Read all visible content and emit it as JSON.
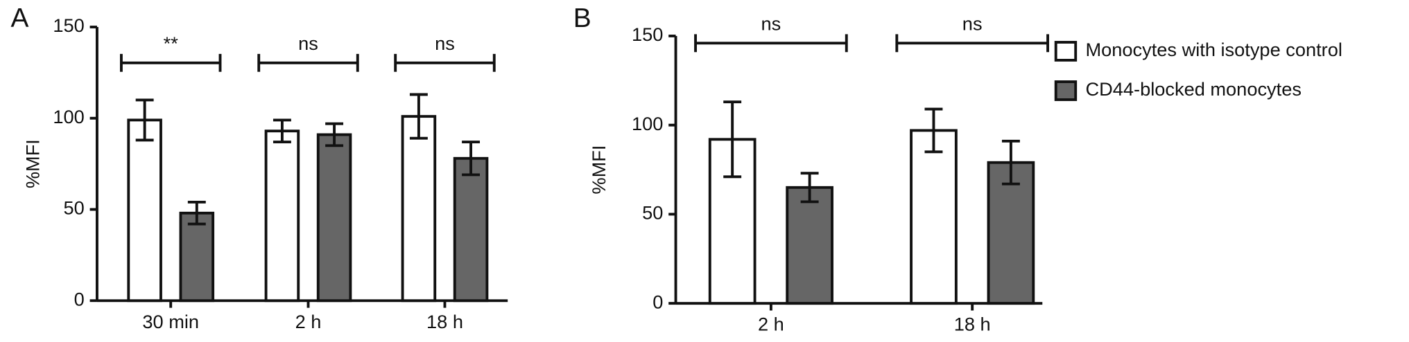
{
  "chart_data": [
    {
      "type": "bar",
      "panel": "A",
      "ylabel": "%MFI",
      "categories": [
        "30 min",
        "2 h",
        "18 h"
      ],
      "series": [
        {
          "color": "#ffffff",
          "values": [
            99,
            93,
            101
          ],
          "errors": [
            11,
            6,
            12
          ]
        },
        {
          "color": "#666666",
          "values": [
            48,
            91,
            78
          ],
          "errors": [
            6,
            6,
            9
          ]
        }
      ],
      "brackets": [
        "**",
        "ns",
        "ns"
      ],
      "ylim": [
        0,
        150
      ],
      "yticks": [
        0,
        50,
        100,
        150
      ],
      "legend": false
    },
    {
      "type": "bar",
      "panel": "B",
      "ylabel": "%MFI",
      "categories": [
        "2 h",
        "18 h"
      ],
      "series": [
        {
          "name": "Monocytes with isotype control",
          "color": "#ffffff",
          "values": [
            92,
            97
          ],
          "errors": [
            21,
            12
          ]
        },
        {
          "name": "CD44-blocked monocytes",
          "color": "#666666",
          "values": [
            65,
            79
          ],
          "errors": [
            8,
            12
          ]
        }
      ],
      "brackets": [
        "ns",
        "ns"
      ],
      "ylim": [
        0,
        150
      ],
      "yticks": [
        0,
        50,
        100,
        150
      ],
      "legend": true
    }
  ]
}
